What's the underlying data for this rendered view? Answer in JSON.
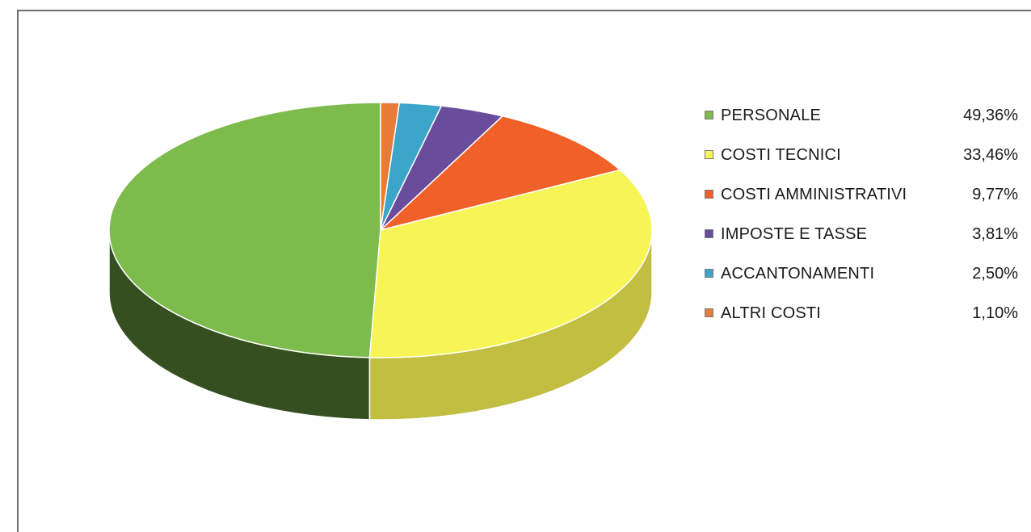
{
  "chart_data": {
    "type": "pie",
    "title": "",
    "legend_position": "right",
    "categories": [
      "PERSONALE",
      "COSTI TECNICI",
      "COSTI AMMINISTRATIVI",
      "IMPOSTE E TASSE",
      "ACCANTONAMENTI",
      "ALTRI COSTI"
    ],
    "values": [
      49.36,
      33.46,
      9.77,
      3.81,
      2.5,
      1.1
    ],
    "value_labels": [
      "49,36%",
      "33,46%",
      "9,77%",
      "3,81%",
      "2,50%",
      "1,10%"
    ],
    "colors": [
      "#7dbb4d",
      "#f7f455",
      "#ef6128",
      "#6a4c9c",
      "#3ba6c9",
      "#e87a3a"
    ]
  }
}
